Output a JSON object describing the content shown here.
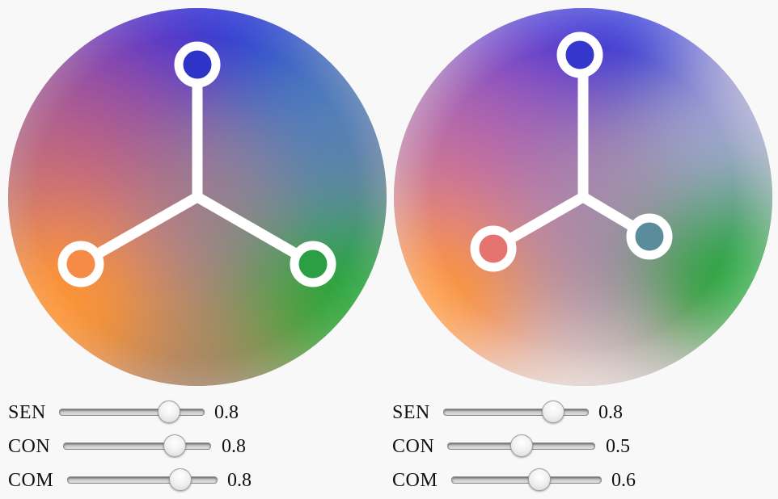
{
  "panels": [
    {
      "id": "left",
      "wheel": {
        "colors": {
          "top": "#2b33d6",
          "left": "#ff9433",
          "right": "#22a637",
          "center": "#9a7f8e"
        },
        "handles": {
          "top": {
            "label": "SEN",
            "value": 0.8
          },
          "left": {
            "label": "CON",
            "value": 0.8
          },
          "right": {
            "label": "COM",
            "value": 0.8
          }
        }
      },
      "sliders": [
        {
          "label": "SEN",
          "value": 0.8,
          "display": "0.8"
        },
        {
          "label": "CON",
          "value": 0.8,
          "display": "0.8"
        },
        {
          "label": "COM",
          "value": 0.8,
          "display": "0.8"
        }
      ]
    },
    {
      "id": "right",
      "wheel": {
        "colors": {
          "top": "#2b33d6",
          "left": "#ff9433",
          "right": "#22a637",
          "center": "#9f8aa6"
        },
        "handles": {
          "top": {
            "label": "SEN",
            "value": 0.8
          },
          "left": {
            "label": "CON",
            "value": 0.5
          },
          "right": {
            "label": "COM",
            "value": 0.6
          }
        }
      },
      "sliders": [
        {
          "label": "SEN",
          "value": 0.8,
          "display": "0.8"
        },
        {
          "label": "CON",
          "value": 0.5,
          "display": "0.5"
        },
        {
          "label": "COM",
          "value": 0.6,
          "display": "0.6"
        }
      ]
    }
  ]
}
